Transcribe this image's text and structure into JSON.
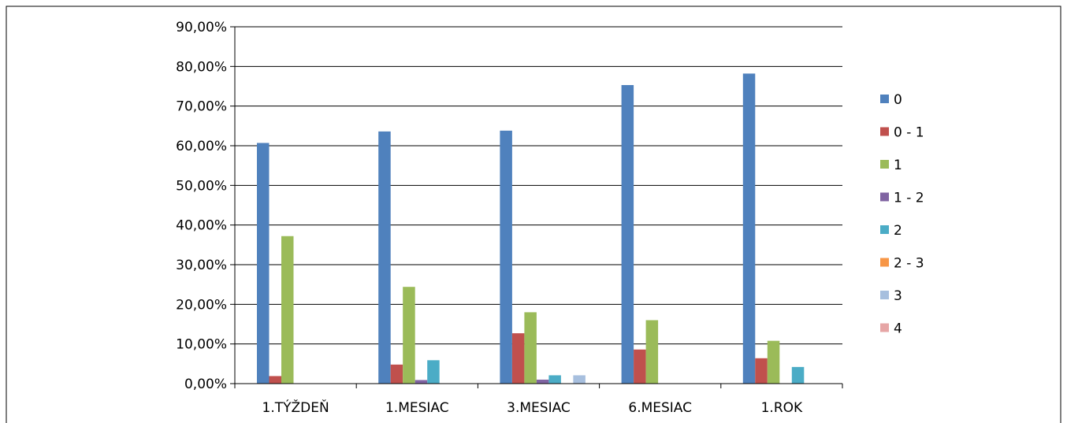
{
  "chart_data": {
    "type": "bar",
    "title": "",
    "xlabel": "",
    "ylabel": "",
    "categories": [
      "1.TÝŽDEŇ",
      "1.MESIAC",
      "3.MESIAC",
      "6.MESIAC",
      "1.ROK"
    ],
    "ylim": [
      0,
      90
    ],
    "yticks": [
      0,
      10,
      20,
      30,
      40,
      50,
      60,
      70,
      80,
      90
    ],
    "ytick_labels": [
      "0,00%",
      "10,00%",
      "20,00%",
      "30,00%",
      "40,00%",
      "50,00%",
      "60,00%",
      "70,00%",
      "80,00%",
      "90,00%"
    ],
    "grid": true,
    "legend_position": "right",
    "series": [
      {
        "name": "0",
        "color": "#4F81BD",
        "values": [
          60.7,
          63.6,
          63.8,
          75.3,
          78.2
        ]
      },
      {
        "name": "0 - 1",
        "color": "#C0504D",
        "values": [
          1.9,
          4.8,
          12.7,
          8.6,
          6.4
        ]
      },
      {
        "name": "1",
        "color": "#9BBB59",
        "values": [
          37.2,
          24.4,
          18.0,
          16.0,
          10.8
        ]
      },
      {
        "name": "1 - 2",
        "color": "#8064A2",
        "values": [
          0,
          0.9,
          1.0,
          0,
          0
        ]
      },
      {
        "name": "2",
        "color": "#4BACC6",
        "values": [
          0,
          5.9,
          2.1,
          0,
          4.2
        ]
      },
      {
        "name": "2 - 3",
        "color": "#F79646",
        "values": [
          0,
          0,
          0,
          0,
          0
        ]
      },
      {
        "name": "3",
        "color": "#A7BFDE",
        "values": [
          0,
          0,
          2.1,
          0,
          0
        ]
      },
      {
        "name": "4",
        "color": "#E6A5A5",
        "values": [
          0,
          0,
          0,
          0,
          0
        ]
      }
    ]
  }
}
